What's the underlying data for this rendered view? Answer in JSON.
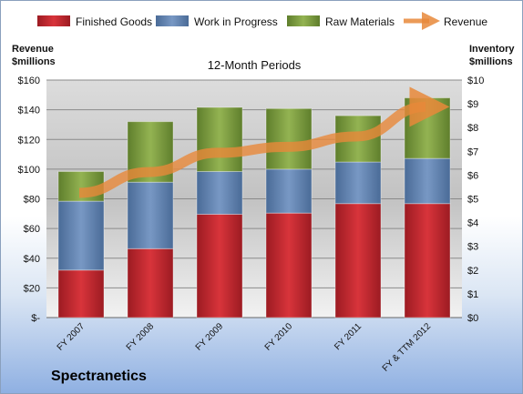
{
  "chart_data": {
    "type": "bar",
    "stacked": true,
    "subtitle": "12-Month Periods",
    "company": "Spectranetics",
    "ylabel_left": [
      "Revenue",
      "$millions"
    ],
    "ylabel_right": [
      "Inventory",
      "$millions"
    ],
    "categories": [
      "FY 2007",
      "FY 2008",
      "FY 2009",
      "FY 2010",
      "FY 2011",
      "FY & TTM 2012"
    ],
    "left_ticks": [
      "$-",
      "$20",
      "$40",
      "$60",
      "$80",
      "$100",
      "$120",
      "$140",
      "$160"
    ],
    "right_ticks": [
      "$0",
      "$1",
      "$2",
      "$3",
      "$4",
      "$5",
      "$6",
      "$7",
      "$8",
      "$9",
      "$10"
    ],
    "ylim_left": [
      0,
      160
    ],
    "ylim_right": [
      0,
      10
    ],
    "series": [
      {
        "name": "Finished Goods",
        "axis": "right",
        "color": "#c0272d",
        "values": [
          2.0,
          2.9,
          4.35,
          4.4,
          4.8,
          4.8
        ]
      },
      {
        "name": "Work in Progress",
        "axis": "right",
        "color": "#5b7fad",
        "values": [
          2.9,
          2.8,
          1.8,
          1.85,
          1.75,
          1.9
        ]
      },
      {
        "name": "Raw Materials",
        "axis": "right",
        "color": "#7a9a3a",
        "values": [
          1.25,
          2.55,
          2.7,
          2.55,
          1.95,
          2.55
        ]
      },
      {
        "name": "Revenue",
        "axis": "left",
        "type": "line",
        "color": "#e8883a",
        "values": [
          84,
          98,
          111,
          115,
          122,
          142
        ]
      }
    ],
    "grid": true,
    "legend": "top"
  }
}
